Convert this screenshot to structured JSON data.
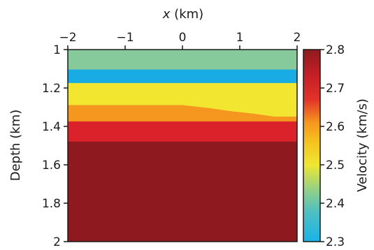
{
  "chart_data": {
    "type": "heatmap",
    "xlabel": {
      "var": "x",
      "unit": " (km)"
    },
    "ylabel": "Depth (km)",
    "colorbar_label": "Velocity (km/s)",
    "xlim": [
      -2,
      2
    ],
    "ylim": [
      2,
      1
    ],
    "x_axis_position": "top",
    "x_ticks": [
      {
        "value": -2,
        "label": "−2"
      },
      {
        "value": -1,
        "label": "−1"
      },
      {
        "value": 0,
        "label": "0"
      },
      {
        "value": 1,
        "label": "1"
      },
      {
        "value": 2,
        "label": "2"
      }
    ],
    "y_ticks": [
      {
        "value": 1.0,
        "label": "1"
      },
      {
        "value": 1.2,
        "label": "1.2"
      },
      {
        "value": 1.4,
        "label": "1.4"
      },
      {
        "value": 1.6,
        "label": "1.6"
      },
      {
        "value": 1.8,
        "label": "1.8"
      },
      {
        "value": 2.0,
        "label": "2"
      }
    ],
    "colorbar": {
      "range": [
        2.3,
        2.8
      ],
      "ticks": [
        {
          "value": 2.3,
          "label": "2.3"
        },
        {
          "value": 2.4,
          "label": "2.4"
        },
        {
          "value": 2.5,
          "label": "2.5"
        },
        {
          "value": 2.6,
          "label": "2.6"
        },
        {
          "value": 2.7,
          "label": "2.7"
        },
        {
          "value": 2.8,
          "label": "2.8"
        }
      ],
      "stops": [
        {
          "value": 2.3,
          "color": "#1ab3e8"
        },
        {
          "value": 2.375,
          "color": "#4dbfc4"
        },
        {
          "value": 2.43,
          "color": "#8ccf8c"
        },
        {
          "value": 2.5,
          "color": "#f0e632"
        },
        {
          "value": 2.56,
          "color": "#f5c21f"
        },
        {
          "value": 2.61,
          "color": "#f5961e"
        },
        {
          "value": 2.67,
          "color": "#e2332a"
        },
        {
          "value": 2.73,
          "color": "#c81f26"
        },
        {
          "value": 2.8,
          "color": "#8e1a1f"
        }
      ]
    },
    "layers": [
      {
        "velocity": 2.43,
        "color": "#86c99b",
        "top": [
          [
            -2,
            1.0
          ],
          [
            2,
            1.0
          ]
        ],
        "bottom": [
          [
            -2,
            1.105
          ],
          [
            2,
            1.105
          ]
        ]
      },
      {
        "velocity": 2.3,
        "color": "#19abe3",
        "top": [
          [
            -2,
            1.105
          ],
          [
            2,
            1.105
          ]
        ],
        "bottom": [
          [
            -2,
            1.175
          ],
          [
            2,
            1.175
          ]
        ]
      },
      {
        "velocity": 2.5,
        "color": "#f2e631",
        "top": [
          [
            -2,
            1.175
          ],
          [
            2,
            1.175
          ]
        ],
        "bottom": [
          [
            -2,
            1.29
          ],
          [
            0,
            1.29
          ],
          [
            0.45,
            1.305
          ],
          [
            0.8,
            1.32
          ],
          [
            1.25,
            1.335
          ],
          [
            1.6,
            1.35
          ],
          [
            2.0,
            1.35
          ]
        ]
      },
      {
        "velocity": 2.6,
        "color": "#f5961f",
        "top": [
          [
            -2,
            1.29
          ],
          [
            0,
            1.29
          ],
          [
            0.45,
            1.305
          ],
          [
            0.8,
            1.32
          ],
          [
            1.25,
            1.335
          ],
          [
            1.6,
            1.35
          ],
          [
            2.0,
            1.35
          ]
        ],
        "bottom": [
          [
            -2,
            1.375
          ],
          [
            2,
            1.375
          ]
        ]
      },
      {
        "velocity": 2.7,
        "color": "#db222b",
        "top": [
          [
            -2,
            1.375
          ],
          [
            2,
            1.375
          ]
        ],
        "bottom": [
          [
            -2,
            1.48
          ],
          [
            2,
            1.48
          ]
        ]
      },
      {
        "velocity": 2.8,
        "color": "#8e1a1f",
        "top": [
          [
            -2,
            1.48
          ],
          [
            2,
            1.48
          ]
        ],
        "bottom": [
          [
            -2,
            2.0
          ],
          [
            2,
            2.0
          ]
        ]
      }
    ]
  }
}
